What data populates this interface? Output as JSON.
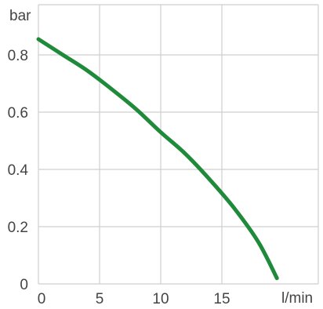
{
  "chart_data": {
    "type": "line",
    "xlabel": "l/min",
    "ylabel": "bar",
    "xlim": [
      0,
      19.5
    ],
    "ylim": [
      0,
      0.85
    ],
    "x_ticks": [
      0,
      5,
      10,
      15
    ],
    "x_tick_labels": [
      "0",
      "5",
      "10",
      "15"
    ],
    "y_ticks": [
      0,
      0.2,
      0.4,
      0.6,
      0.8
    ],
    "y_tick_labels": [
      "0",
      "0.2",
      "0.4",
      "0.6",
      "0.8"
    ],
    "grid": true,
    "series": [
      {
        "color": "#1f8a3a",
        "x": [
          0,
          2,
          4,
          6,
          8,
          10,
          12,
          14,
          16,
          18,
          19.5
        ],
        "y": [
          0.855,
          0.8,
          0.745,
          0.68,
          0.61,
          0.53,
          0.455,
          0.365,
          0.265,
          0.145,
          0.02
        ]
      }
    ]
  }
}
